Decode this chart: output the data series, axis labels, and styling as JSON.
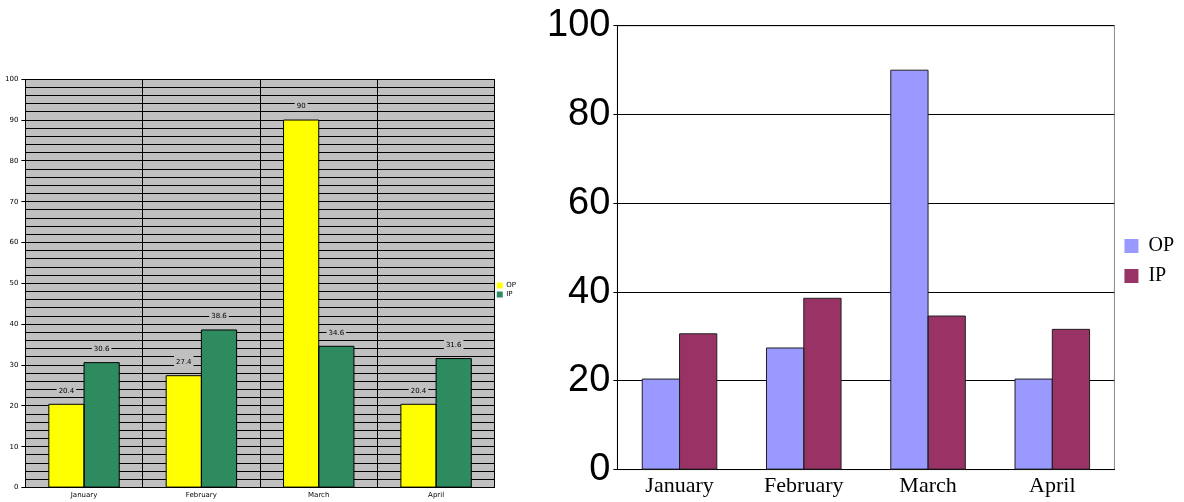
{
  "chart_data": [
    {
      "type": "bar",
      "categories": [
        "January",
        "February",
        "March",
        "April"
      ],
      "series": [
        {
          "name": "OP",
          "color": "#ffff00",
          "values": [
            20.4,
            27.4,
            90,
            20.4
          ]
        },
        {
          "name": "IP",
          "color": "#2e8b5f",
          "values": [
            30.6,
            38.6,
            34.6,
            31.6
          ]
        }
      ],
      "ylim": [
        0,
        100
      ],
      "yticks": [
        0,
        {
          "value": 2,
          "label": null
        },
        {
          "value": 4,
          "label": null
        },
        {
          "value": 6,
          "label": null
        },
        {
          "value": 8,
          "label": null
        },
        10,
        {
          "value": 12,
          "label": null
        },
        {
          "value": 14,
          "label": null
        },
        {
          "value": 16,
          "label": null
        },
        {
          "value": 18,
          "label": null
        },
        20,
        {
          "value": 22,
          "label": null
        },
        {
          "value": 24,
          "label": null
        },
        {
          "value": 26,
          "label": null
        },
        {
          "value": 28,
          "label": null
        },
        30,
        {
          "value": 32,
          "label": null
        },
        {
          "value": 34,
          "label": null
        },
        {
          "value": 36,
          "label": null
        },
        {
          "value": 38,
          "label": null
        },
        40,
        {
          "value": 42,
          "label": null
        },
        {
          "value": 44,
          "label": null
        },
        {
          "value": 46,
          "label": null
        },
        {
          "value": 48,
          "label": null
        },
        50,
        {
          "value": 52,
          "label": null
        },
        {
          "value": 54,
          "label": null
        },
        {
          "value": 56,
          "label": null
        },
        {
          "value": 58,
          "label": null
        },
        60,
        {
          "value": 62,
          "label": null
        },
        {
          "value": 64,
          "label": null
        },
        {
          "value": 66,
          "label": null
        },
        {
          "value": 68,
          "label": null
        },
        70,
        {
          "value": 72,
          "label": null
        },
        {
          "value": 74,
          "label": null
        },
        {
          "value": 76,
          "label": null
        },
        {
          "value": 78,
          "label": null
        },
        80,
        {
          "value": 82,
          "label": null
        },
        {
          "value": 84,
          "label": null
        },
        {
          "value": 86,
          "label": null
        },
        {
          "value": 88,
          "label": null
        },
        90,
        {
          "value": 92,
          "label": null
        },
        {
          "value": 94,
          "label": null
        },
        {
          "value": 96,
          "label": null
        },
        {
          "value": 98,
          "label": null
        },
        100
      ],
      "grid": true,
      "legend": "right",
      "data_labels": true
    },
    {
      "type": "bar",
      "categories": [
        "January",
        "February",
        "March",
        "April"
      ],
      "series": [
        {
          "name": "OP",
          "color": "#9999ff",
          "values": [
            20.4,
            27.4,
            90,
            20.4
          ]
        },
        {
          "name": "IP",
          "color": "#993366",
          "values": [
            30.6,
            38.6,
            34.6,
            31.6
          ]
        }
      ],
      "ylim": [
        0,
        100
      ],
      "yticks": [
        0,
        20,
        40,
        60,
        80,
        100
      ],
      "grid": "y",
      "legend": "right"
    }
  ]
}
